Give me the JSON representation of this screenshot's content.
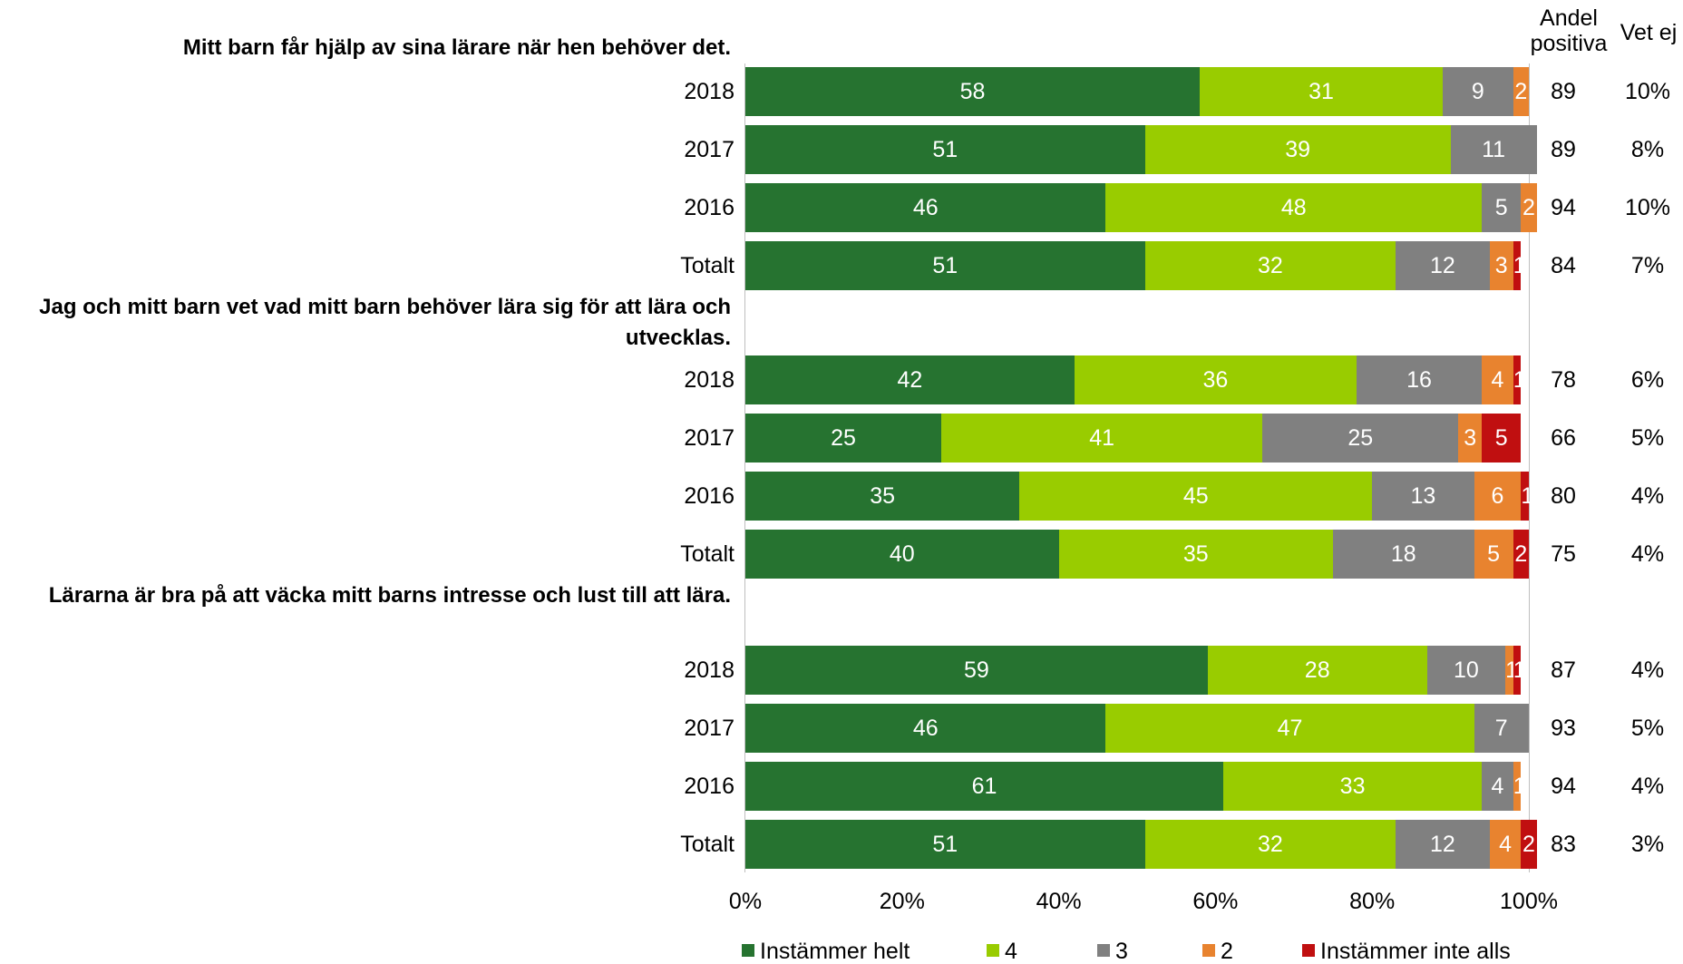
{
  "column_headers": {
    "positive": "Andel positiva",
    "dont_know": "Vet ej"
  },
  "colors": {
    "Instämmer helt": "#267330",
    "4": "#99cc00",
    "3": "#808080",
    "2": "#e8832f",
    "Instämmer inte alls": "#c00f10"
  },
  "chart_data": {
    "type": "bar",
    "orientation": "horizontal",
    "stacked": true,
    "xlim": [
      0,
      100
    ],
    "x_ticks": [
      "0%",
      "20%",
      "40%",
      "60%",
      "80%",
      "100%"
    ],
    "legend": [
      "Instämmer helt",
      "4",
      "3",
      "2",
      "Instämmer inte alls"
    ],
    "legend_position": "bottom",
    "groups": [
      {
        "title": "Mitt barn får hjälp av sina lärare när hen behöver det.",
        "rows": [
          {
            "label": "2018",
            "values": [
              58,
              31,
              9,
              2,
              0
            ],
            "labels": [
              "58",
              "31",
              "9",
              "2",
              ""
            ],
            "positive": "89",
            "dont_know": "10%"
          },
          {
            "label": "2017",
            "values": [
              51,
              39,
              11,
              0,
              0
            ],
            "labels": [
              "51",
              "39",
              "11",
              "",
              ""
            ],
            "positive": "89",
            "dont_know": "8%"
          },
          {
            "label": "2016",
            "values": [
              46,
              48,
              5,
              2,
              0
            ],
            "labels": [
              "46",
              "48",
              "5",
              "2",
              ""
            ],
            "positive": "94",
            "dont_know": "10%"
          },
          {
            "label": "Totalt",
            "values": [
              51,
              32,
              12,
              3,
              1
            ],
            "labels": [
              "51",
              "32",
              "12",
              "3",
              "1"
            ],
            "positive": "84",
            "dont_know": "7%"
          }
        ]
      },
      {
        "title": "Jag och mitt barn vet vad mitt barn behöver lära sig för att lära och utvecklas.",
        "rows": [
          {
            "label": "2018",
            "values": [
              42,
              36,
              16,
              4,
              1
            ],
            "labels": [
              "42",
              "36",
              "16",
              "4",
              "1"
            ],
            "positive": "78",
            "dont_know": "6%"
          },
          {
            "label": "2017",
            "values": [
              25,
              41,
              25,
              3,
              5
            ],
            "labels": [
              "25",
              "41",
              "25",
              "3",
              "5"
            ],
            "positive": "66",
            "dont_know": "5%"
          },
          {
            "label": "2016",
            "values": [
              35,
              45,
              13,
              6,
              1
            ],
            "labels": [
              "35",
              "45",
              "13",
              "6",
              "1"
            ],
            "positive": "80",
            "dont_know": "4%"
          },
          {
            "label": "Totalt",
            "values": [
              40,
              35,
              18,
              5,
              2
            ],
            "labels": [
              "40",
              "35",
              "18",
              "5",
              "2"
            ],
            "positive": "75",
            "dont_know": "4%"
          }
        ]
      },
      {
        "title": "Lärarna är bra på att väcka mitt barns intresse och lust till att lära.",
        "rows": [
          {
            "label": "2018",
            "values": [
              59,
              28,
              10,
              1,
              1
            ],
            "labels": [
              "59",
              "28",
              "10",
              "1",
              "1"
            ],
            "positive": "87",
            "dont_know": "4%"
          },
          {
            "label": "2017",
            "values": [
              46,
              47,
              7,
              0,
              0
            ],
            "labels": [
              "46",
              "47",
              "7",
              "",
              ""
            ],
            "positive": "93",
            "dont_know": "5%"
          },
          {
            "label": "2016",
            "values": [
              61,
              33,
              4,
              1,
              0
            ],
            "labels": [
              "61",
              "33",
              "4",
              "1",
              ""
            ],
            "positive": "94",
            "dont_know": "4%"
          },
          {
            "label": "Totalt",
            "values": [
              51,
              32,
              12,
              4,
              2
            ],
            "labels": [
              "51",
              "32",
              "12",
              "4",
              "2"
            ],
            "positive": "83",
            "dont_know": "3%"
          }
        ]
      }
    ]
  }
}
